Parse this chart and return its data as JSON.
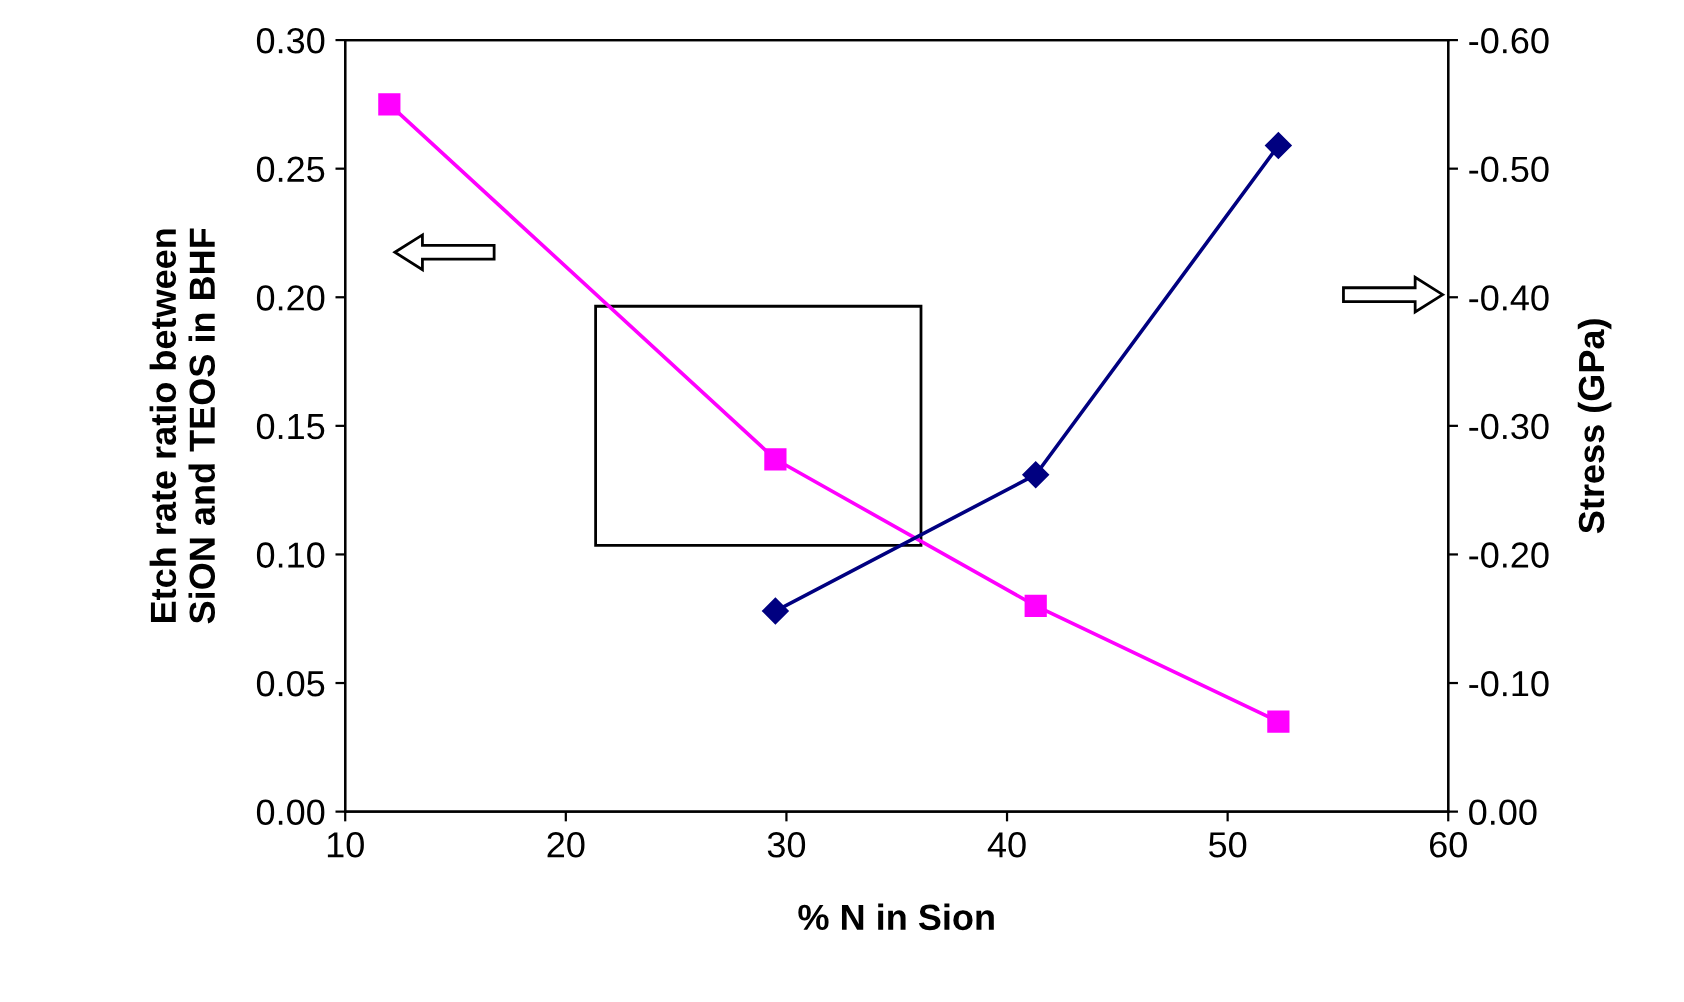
{
  "chart_data": {
    "type": "line",
    "xlabel": "% N in Sion",
    "ylabel": "Etch rate ratio between\nSiON and TEOS in BHF",
    "y2label": "Stress (GPa)",
    "xlim": [
      10,
      60
    ],
    "xticks": [
      10,
      20,
      30,
      40,
      50,
      60
    ],
    "ylim": [
      0,
      0.3
    ],
    "yticks": [
      {
        "value": 0,
        "label": "0.00"
      },
      {
        "value": 0.05,
        "label": "0.05"
      },
      {
        "value": 0.1,
        "label": "0.10"
      },
      {
        "value": 0.15,
        "label": "0.15"
      },
      {
        "value": 0.2,
        "label": "0.20"
      },
      {
        "value": 0.25,
        "label": "0.25"
      },
      {
        "value": 0.3,
        "label": "0.30"
      }
    ],
    "y2lim": [
      0,
      -0.6
    ],
    "y2ticks": [
      {
        "value": 0,
        "label": "0.00"
      },
      {
        "value": -0.1,
        "label": "-0.10"
      },
      {
        "value": -0.2,
        "label": "-0.20"
      },
      {
        "value": -0.3,
        "label": "-0.30"
      },
      {
        "value": -0.4,
        "label": "-0.40"
      },
      {
        "value": -0.5,
        "label": "-0.50"
      },
      {
        "value": -0.6,
        "label": "-0.60"
      }
    ],
    "grid": false,
    "line_style": "solid",
    "series": [
      {
        "color": "#ff00ff",
        "marker": "square",
        "x": [
          12,
          29.5,
          41.3,
          52.3
        ],
        "values": [
          0.275,
          0.137,
          0.08,
          0.035
        ]
      },
      {
        "color": "#000080",
        "marker": "diamond",
        "axis": "y2",
        "x": [
          29.5,
          41.3,
          52.3
        ],
        "values": [
          -0.156,
          -0.262,
          -0.518
        ]
      }
    ]
  }
}
